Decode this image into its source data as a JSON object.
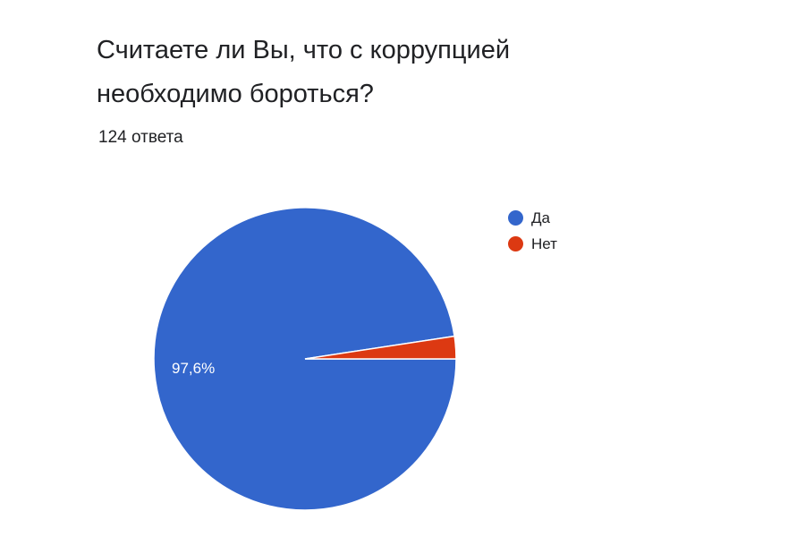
{
  "question": {
    "line1": "Считаете ли Вы, что с коррупцией",
    "line2": "необходимо бороться?"
  },
  "response_count": "124 ответа",
  "colors": {
    "yes": "#3366cc",
    "no": "#dc3912"
  },
  "chart_data": {
    "type": "pie",
    "title": "Считаете ли Вы, что с коррупцией необходимо бороться?",
    "subtitle": "124 ответа",
    "legend_position": "right",
    "slices": [
      {
        "label": "Да",
        "value": 97.6,
        "display_label": "97,6%",
        "color": "#3366cc"
      },
      {
        "label": "Нет",
        "value": 2.4,
        "display_label": "",
        "color": "#dc3912"
      }
    ]
  }
}
